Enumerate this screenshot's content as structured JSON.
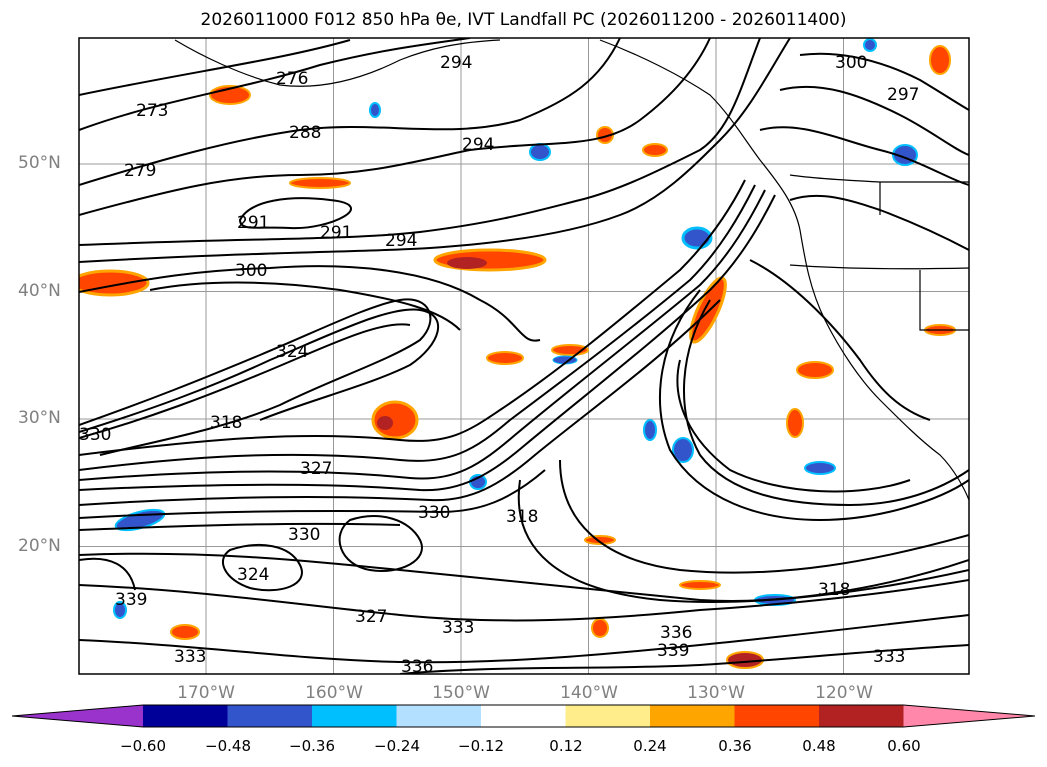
{
  "title": "2026011000 F012 850 hPa θe, IVT Landfall PC (2026011200 - 2026011400)",
  "map": {
    "lat_ticks": [
      {
        "label": "50°N",
        "lat": 50
      },
      {
        "label": "40°N",
        "lat": 40
      },
      {
        "label": "30°N",
        "lat": 30
      },
      {
        "label": "20°N",
        "lat": 20
      }
    ],
    "lon_ticks": [
      {
        "label": "170°W",
        "lon": -170
      },
      {
        "label": "160°W",
        "lon": -160
      },
      {
        "label": "150°W",
        "lon": -150
      },
      {
        "label": "140°W",
        "lon": -140
      },
      {
        "label": "130°W",
        "lon": -130
      },
      {
        "label": "120°W",
        "lon": -120
      }
    ],
    "contour_labels": [
      "273",
      "276",
      "279",
      "288",
      "291",
      "294",
      "297",
      "300",
      "318",
      "324",
      "327",
      "330",
      "333",
      "336",
      "339"
    ]
  },
  "colorbar": {
    "ticks": [
      "−0.60",
      "−0.48",
      "−0.36",
      "−0.24",
      "−0.12",
      "0.12",
      "0.24",
      "0.36",
      "0.48",
      "0.60"
    ],
    "colors": [
      "#9933cc",
      "#000099",
      "#3355cc",
      "#00bfff",
      "#b3e0ff",
      "#ffffff",
      "#ffec8b",
      "#ffa500",
      "#ff4500",
      "#b22222",
      "#ff88aa"
    ]
  }
}
